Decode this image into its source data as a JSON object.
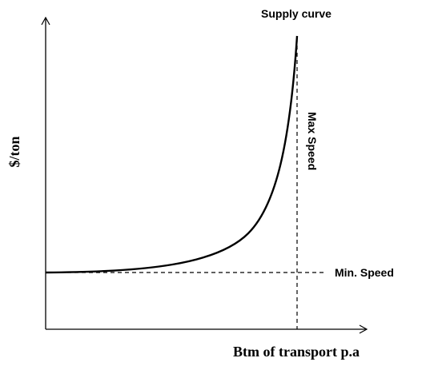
{
  "diagram": {
    "curve_label": "Supply curve",
    "y_axis_label": "$/ton",
    "x_axis_label": "Btm of transport p.a",
    "max_line_label": "Max  Speed",
    "min_line_label": "Min. Speed"
  }
}
